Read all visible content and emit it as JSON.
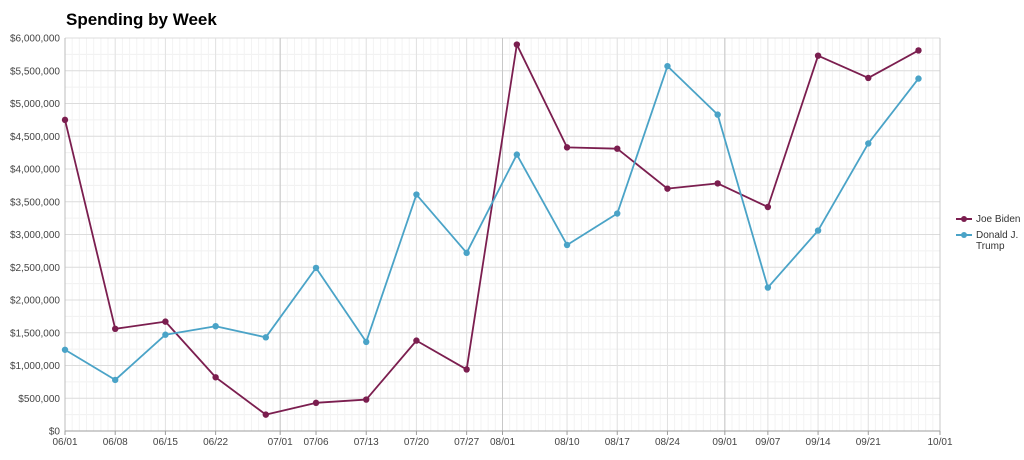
{
  "chart_data": {
    "type": "line",
    "title": "Spending by Week",
    "xlabel": "",
    "ylabel": "",
    "ylim": [
      0,
      6000000
    ],
    "yticks": [
      0,
      500000,
      1000000,
      1500000,
      2000000,
      2500000,
      3000000,
      3500000,
      4000000,
      4500000,
      5000000,
      5500000,
      6000000
    ],
    "ytick_labels": [
      "$0",
      "$500,000",
      "$1,000,000",
      "$1,500,000",
      "$2,000,000",
      "$2,500,000",
      "$3,000,000",
      "$3,500,000",
      "$4,000,000",
      "$4,500,000",
      "$5,000,000",
      "$5,500,000",
      "$6,000,000"
    ],
    "xlim": [
      "2020-06-01",
      "2020-10-01"
    ],
    "xticks": [
      {
        "date": "2020-06-01",
        "label": "06/01"
      },
      {
        "date": "2020-06-08",
        "label": "06/08"
      },
      {
        "date": "2020-06-15",
        "label": "06/15"
      },
      {
        "date": "2020-06-22",
        "label": "06/22"
      },
      {
        "date": "2020-07-01",
        "label": "07/01"
      },
      {
        "date": "2020-07-06",
        "label": "07/06"
      },
      {
        "date": "2020-07-13",
        "label": "07/13"
      },
      {
        "date": "2020-07-20",
        "label": "07/20"
      },
      {
        "date": "2020-07-27",
        "label": "07/27"
      },
      {
        "date": "2020-08-01",
        "label": "08/01"
      },
      {
        "date": "2020-08-10",
        "label": "08/10"
      },
      {
        "date": "2020-08-17",
        "label": "08/17"
      },
      {
        "date": "2020-08-24",
        "label": "08/24"
      },
      {
        "date": "2020-09-01",
        "label": "09/01"
      },
      {
        "date": "2020-09-07",
        "label": "09/07"
      },
      {
        "date": "2020-09-14",
        "label": "09/14"
      },
      {
        "date": "2020-09-21",
        "label": "09/21"
      },
      {
        "date": "2020-10-01",
        "label": "10/01"
      }
    ],
    "month_lines": [
      "2020-07-01",
      "2020-08-01",
      "2020-09-01",
      "2020-10-01"
    ],
    "grid": true,
    "legend": "right",
    "x": [
      "2020-06-01",
      "2020-06-08",
      "2020-06-15",
      "2020-06-22",
      "2020-06-29",
      "2020-07-06",
      "2020-07-13",
      "2020-07-20",
      "2020-07-27",
      "2020-08-03",
      "2020-08-10",
      "2020-08-17",
      "2020-08-24",
      "2020-08-31",
      "2020-09-07",
      "2020-09-14",
      "2020-09-21",
      "2020-09-28"
    ],
    "series": [
      {
        "name": "Joe Biden",
        "color": "#7b1e4f",
        "values": [
          4750000,
          1560000,
          1670000,
          820000,
          250000,
          430000,
          480000,
          1380000,
          940000,
          5900000,
          4330000,
          4310000,
          3700000,
          3780000,
          3420000,
          5730000,
          5390000,
          5810000
        ]
      },
      {
        "name": "Donald J. Trump",
        "color": "#4aa3c7",
        "values": [
          1240000,
          780000,
          1470000,
          1600000,
          1430000,
          2490000,
          1360000,
          3610000,
          2720000,
          4220000,
          2840000,
          3320000,
          5570000,
          4830000,
          2190000,
          3060000,
          4390000,
          5380000
        ]
      }
    ]
  }
}
